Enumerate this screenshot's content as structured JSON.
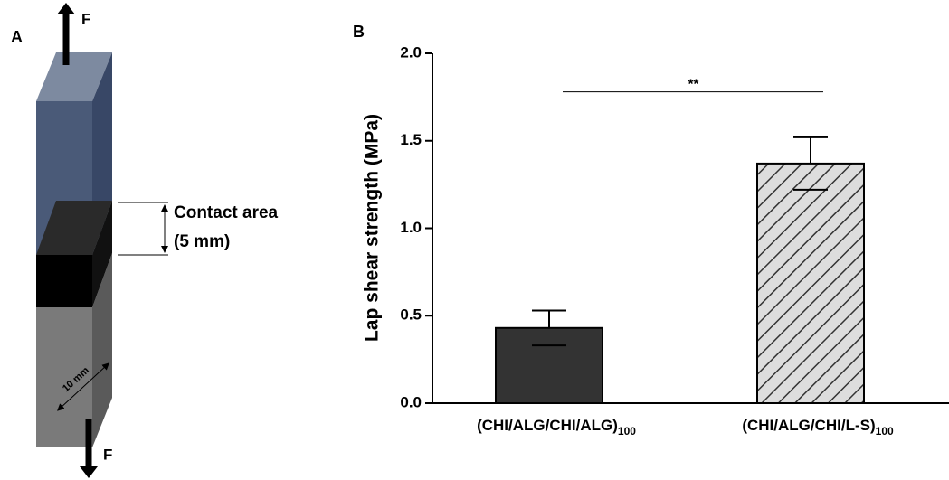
{
  "panel_a": {
    "label": "A",
    "force_top": "F",
    "force_bottom": "F",
    "contact_label": "Contact area",
    "contact_size": "(5 mm)",
    "width_label": "10 mm"
  },
  "chart_data": {
    "type": "bar",
    "panel_label": "B",
    "ylabel": "Lap shear strength (MPa)",
    "categories": [
      "(CHI/ALG/CHI/ALG)",
      "(CHI/ALG/CHI/L-S)"
    ],
    "category_subscripts": [
      "100",
      "100"
    ],
    "values": [
      0.43,
      1.37
    ],
    "errors": [
      0.1,
      0.15
    ],
    "colors": [
      "#333333",
      "#dddddd"
    ],
    "hatch": [
      false,
      true
    ],
    "ylim": [
      0,
      2
    ],
    "yticks": [
      {
        "value": 0,
        "label": "0.0"
      },
      0.5,
      {
        "value": 1,
        "label": "1.0"
      },
      1.5,
      {
        "value": 2,
        "label": "2.0"
      }
    ],
    "annotations": [
      {
        "text": "**",
        "from": 0,
        "to": 1,
        "y": 1.78
      }
    ]
  }
}
